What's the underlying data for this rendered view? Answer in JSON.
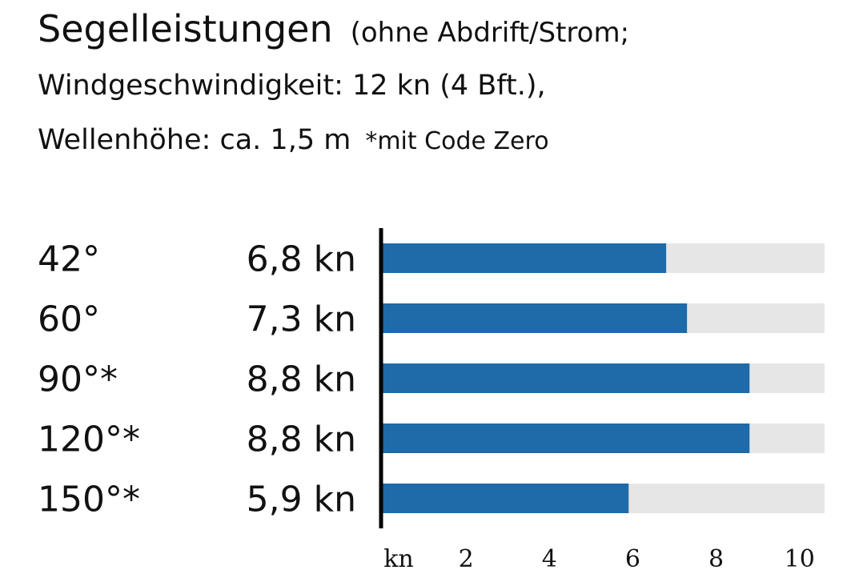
{
  "chart_data": {
    "type": "hbar",
    "title": "Segelleistungen",
    "subtitle_lines": [
      "(ohne Abdrift/Strom;",
      "Windgeschwindigkeit: 12 kn (4 Bft.),",
      "Wellenhöhe: ca. 1,5 m"
    ],
    "note": "*mit Code Zero",
    "categories": [
      "42°",
      "60°",
      "90°*",
      "120°*",
      "150°*"
    ],
    "values": [
      6.8,
      7.3,
      8.8,
      8.8,
      5.9
    ],
    "value_labels": [
      "6,8 kn",
      "7,3 kn",
      "8,8 kn",
      "8,8 kn",
      "5,9 kn"
    ],
    "color": "#1f6aa8",
    "track_color": "#e6e6e6",
    "xlim": [
      0,
      10.6
    ],
    "xticks": [
      {
        "value": 0,
        "label": "kn"
      },
      2,
      4,
      6,
      8,
      10
    ]
  }
}
